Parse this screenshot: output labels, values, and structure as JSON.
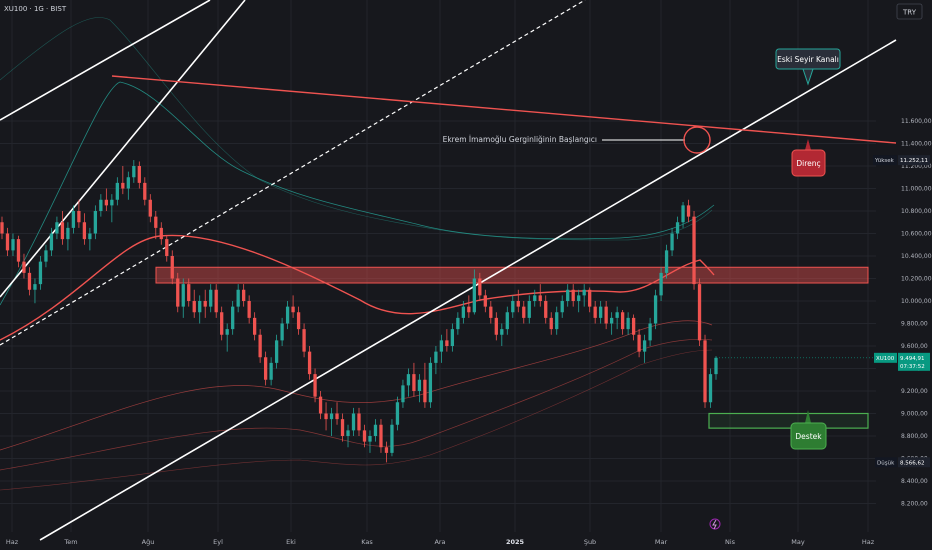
{
  "header": {
    "symbol_title": "XU100 · 1G · BIST",
    "currency_button": "TRY"
  },
  "colors": {
    "background": "#17181d",
    "grid": "#23252c",
    "up_candle": "#26a69a",
    "down_candle": "#ef5350",
    "resistance": "#ef5350",
    "support": "#4caf50",
    "channel": "#ffffff",
    "price_tag": "#089981"
  },
  "chart_data": {
    "type": "candlestick",
    "symbol": "XU100",
    "timeframe": "1G",
    "exchange": "BIST",
    "y_axis": {
      "ticks": [
        "11.600,00",
        "11.400,00",
        "11.200,00",
        "11.000,00",
        "10.800,00",
        "10.600,00",
        "10.400,00",
        "10.200,00",
        "10.000,00",
        "9.800,00",
        "9.600,00",
        "9.400,00",
        "9.200,00",
        "9.000,00",
        "8.800,00",
        "8.600,00",
        "8.400,00",
        "8.200,00"
      ],
      "tick_values": [
        11600,
        11400,
        11200,
        11000,
        10800,
        10600,
        10400,
        10200,
        10000,
        9800,
        9600,
        9400,
        9200,
        9000,
        8800,
        8600,
        8400,
        8200
      ],
      "range": [
        8150,
        11700
      ]
    },
    "x_axis": {
      "ticks": [
        "Haz",
        "Tem",
        "Ağu",
        "Eyl",
        "Eki",
        "Kas",
        "Ara",
        "2025",
        "Şub",
        "Mar",
        "Nis",
        "May",
        "Haz"
      ],
      "bold_tick": "2025"
    },
    "levels": {
      "high": {
        "label": "Yüksek",
        "value": 11252.11,
        "text": "11.252,11"
      },
      "low": {
        "label": "Düşük",
        "value": 8566.62,
        "text": "8.566,62"
      },
      "last": {
        "label": "XU100",
        "value": 9494.91,
        "text": "9.494,91",
        "countdown": "07:37:52"
      }
    },
    "zones": {
      "resistance_zone": [
        10160,
        10300
      ],
      "support_zone": [
        8870,
        9000
      ]
    },
    "annotations": {
      "old_channel": "Eski Seyir Kanalı",
      "imamoglu_start": "Ekrem İmamoğlu Gerginliğinin Başlangıcı",
      "resistance": "Direnç",
      "support": "Destek"
    },
    "candles": [
      [
        10700,
        10750,
        10550,
        10600
      ],
      [
        10600,
        10650,
        10400,
        10450
      ],
      [
        10450,
        10600,
        10400,
        10550
      ],
      [
        10550,
        10580,
        10300,
        10350
      ],
      [
        10350,
        10420,
        10200,
        10250
      ],
      [
        10250,
        10300,
        10050,
        10100
      ],
      [
        10100,
        10200,
        9980,
        10150
      ],
      [
        10150,
        10400,
        10100,
        10350
      ],
      [
        10350,
        10500,
        10300,
        10450
      ],
      [
        10450,
        10650,
        10400,
        10600
      ],
      [
        10600,
        10750,
        10550,
        10700
      ],
      [
        10700,
        10800,
        10500,
        10550
      ],
      [
        10550,
        10700,
        10450,
        10650
      ],
      [
        10650,
        10850,
        10600,
        10800
      ],
      [
        10800,
        10900,
        10650,
        10700
      ],
      [
        10700,
        10780,
        10500,
        10550
      ],
      [
        10550,
        10650,
        10450,
        10600
      ],
      [
        10600,
        10850,
        10550,
        10800
      ],
      [
        10800,
        10950,
        10750,
        10900
      ],
      [
        10900,
        11000,
        10800,
        10850
      ],
      [
        10850,
        10950,
        10700,
        10900
      ],
      [
        10900,
        11100,
        10850,
        11050
      ],
      [
        11050,
        11200,
        10950,
        11000
      ],
      [
        11000,
        11150,
        10900,
        11100
      ],
      [
        11100,
        11253,
        11050,
        11200
      ],
      [
        11200,
        11240,
        11000,
        11050
      ],
      [
        11050,
        11100,
        10850,
        10900
      ],
      [
        10900,
        10950,
        10700,
        10750
      ],
      [
        10750,
        10800,
        10550,
        10650
      ],
      [
        10650,
        10700,
        10500,
        10550
      ],
      [
        10550,
        10580,
        10350,
        10400
      ],
      [
        10400,
        10450,
        10150,
        10200
      ],
      [
        10200,
        10250,
        9900,
        9950
      ],
      [
        9950,
        10200,
        9850,
        10150
      ],
      [
        10150,
        10200,
        9950,
        10000
      ],
      [
        10000,
        10100,
        9850,
        9900
      ],
      [
        9900,
        10050,
        9800,
        10000
      ],
      [
        10000,
        10100,
        9850,
        9950
      ],
      [
        9950,
        10150,
        9900,
        10100
      ],
      [
        10100,
        10150,
        9850,
        9900
      ],
      [
        9900,
        9950,
        9650,
        9700
      ],
      [
        9700,
        9800,
        9550,
        9750
      ],
      [
        9750,
        10000,
        9700,
        9950
      ],
      [
        9950,
        10150,
        9900,
        10100
      ],
      [
        10100,
        10150,
        9950,
        10000
      ],
      [
        10000,
        10050,
        9800,
        9850
      ],
      [
        9850,
        9900,
        9650,
        9700
      ],
      [
        9700,
        9750,
        9450,
        9500
      ],
      [
        9500,
        9550,
        9250,
        9300
      ],
      [
        9300,
        9500,
        9250,
        9450
      ],
      [
        9450,
        9700,
        9400,
        9650
      ],
      [
        9650,
        9850,
        9600,
        9800
      ],
      [
        9800,
        10000,
        9750,
        9950
      ],
      [
        9950,
        10050,
        9850,
        9900
      ],
      [
        9900,
        9950,
        9700,
        9750
      ],
      [
        9750,
        9800,
        9500,
        9550
      ],
      [
        9550,
        9600,
        9300,
        9350
      ],
      [
        9350,
        9400,
        9100,
        9150
      ],
      [
        9150,
        9200,
        8950,
        9000
      ],
      [
        9000,
        9100,
        8850,
        8950
      ],
      [
        8950,
        9050,
        8800,
        9000
      ],
      [
        9000,
        9100,
        8900,
        8950
      ],
      [
        8950,
        9000,
        8750,
        8800
      ],
      [
        8800,
        8900,
        8700,
        8850
      ],
      [
        8850,
        9050,
        8800,
        9000
      ],
      [
        9000,
        9050,
        8800,
        8850
      ],
      [
        8850,
        8900,
        8700,
        8750
      ],
      [
        8750,
        8850,
        8650,
        8800
      ],
      [
        8800,
        8950,
        8750,
        8900
      ],
      [
        8900,
        8950,
        8650,
        8700
      ],
      [
        8700,
        8750,
        8566,
        8650
      ],
      [
        8650,
        8950,
        8620,
        8900
      ],
      [
        8900,
        9150,
        8850,
        9100
      ],
      [
        9100,
        9300,
        9050,
        9250
      ],
      [
        9250,
        9400,
        9150,
        9350
      ],
      [
        9350,
        9450,
        9150,
        9200
      ],
      [
        9200,
        9350,
        9100,
        9300
      ],
      [
        9300,
        9450,
        9050,
        9100
      ],
      [
        9100,
        9500,
        9050,
        9450
      ],
      [
        9450,
        9600,
        9350,
        9550
      ],
      [
        9550,
        9700,
        9450,
        9650
      ],
      [
        9650,
        9750,
        9550,
        9600
      ],
      [
        9600,
        9800,
        9550,
        9750
      ],
      [
        9750,
        9900,
        9700,
        9850
      ],
      [
        9850,
        10000,
        9800,
        9950
      ],
      [
        9950,
        10050,
        9850,
        9900
      ],
      [
        9900,
        10280,
        9880,
        10200
      ],
      [
        10200,
        10250,
        10000,
        10050
      ],
      [
        10050,
        10100,
        9900,
        9950
      ],
      [
        9950,
        10000,
        9800,
        9850
      ],
      [
        9850,
        9900,
        9650,
        9700
      ],
      [
        9700,
        9800,
        9600,
        9750
      ],
      [
        9750,
        9950,
        9700,
        9900
      ],
      [
        9900,
        10050,
        9850,
        10000
      ],
      [
        10000,
        10100,
        9900,
        9950
      ],
      [
        9950,
        10000,
        9800,
        9850
      ],
      [
        9850,
        10050,
        9800,
        10000
      ],
      [
        10000,
        10100,
        9950,
        10050
      ],
      [
        10050,
        10150,
        9950,
        10000
      ],
      [
        10000,
        10050,
        9800,
        9850
      ],
      [
        9850,
        9900,
        9700,
        9750
      ],
      [
        9750,
        9950,
        9700,
        9900
      ],
      [
        9900,
        10050,
        9850,
        10000
      ],
      [
        10000,
        10150,
        9950,
        10100
      ],
      [
        10100,
        10150,
        9950,
        10000
      ],
      [
        10000,
        10100,
        9900,
        10050
      ],
      [
        10050,
        10150,
        9950,
        10100
      ],
      [
        10100,
        10120,
        9900,
        9950
      ],
      [
        9950,
        10000,
        9800,
        9850
      ],
      [
        9850,
        10000,
        9800,
        9950
      ],
      [
        9950,
        10000,
        9750,
        9800
      ],
      [
        9800,
        9900,
        9700,
        9850
      ],
      [
        9850,
        9950,
        9750,
        9900
      ],
      [
        9900,
        9920,
        9700,
        9750
      ],
      [
        9750,
        9900,
        9700,
        9850
      ],
      [
        9850,
        9880,
        9650,
        9700
      ],
      [
        9700,
        9750,
        9500,
        9550
      ],
      [
        9550,
        9700,
        9450,
        9650
      ],
      [
        9650,
        9850,
        9600,
        9800
      ],
      [
        9800,
        10100,
        9750,
        10050
      ],
      [
        10050,
        10300,
        10000,
        10250
      ],
      [
        10250,
        10500,
        10200,
        10450
      ],
      [
        10450,
        10650,
        10400,
        10600
      ],
      [
        10600,
        10750,
        10550,
        10700
      ],
      [
        10700,
        10880,
        10650,
        10850
      ],
      [
        10850,
        10900,
        10700,
        10750
      ],
      [
        10750,
        10800,
        10100,
        10150
      ],
      [
        10150,
        10200,
        9600,
        9650
      ],
      [
        9650,
        9700,
        9050,
        9100
      ],
      [
        9100,
        9400,
        9050,
        9350
      ],
      [
        9350,
        9510,
        9300,
        9495
      ]
    ]
  }
}
